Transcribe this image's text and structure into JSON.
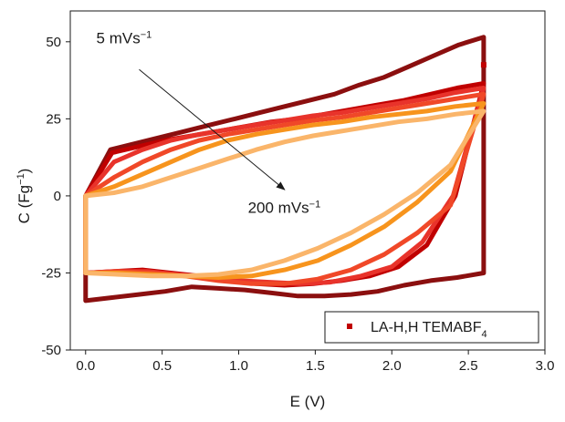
{
  "chart_data": {
    "type": "line",
    "title": "",
    "xlabel": "E (V)",
    "ylabel": {
      "base": "C (Fg",
      "sup": "−1",
      "close": ")"
    },
    "xlim": [
      -0.1,
      3.0
    ],
    "ylim": [
      -50,
      60
    ],
    "x_ticks": [
      0.0,
      0.5,
      1.0,
      1.5,
      2.0,
      2.5,
      3.0
    ],
    "x_tick_labels": [
      "0.0",
      "0.5",
      "1.0",
      "1.5",
      "2.0",
      "2.5",
      "3.0"
    ],
    "y_ticks": [
      -50,
      -25,
      0,
      25,
      50
    ],
    "y_tick_labels": [
      "-50",
      "-25",
      "0",
      "25",
      "50"
    ],
    "grid": false,
    "legend": {
      "placement": "bottom-right",
      "marker_color": "#c00000",
      "text": {
        "base": "LA-H,H TEMABF",
        "sub": "4"
      }
    },
    "annotations": [
      {
        "text": "5 mVs",
        "sup": "−1",
        "x": 0.07,
        "y": 49.5
      },
      {
        "text": "200 mVs",
        "sup": "−1",
        "x": 1.06,
        "y": -5.5
      }
    ],
    "arrow": {
      "from": [
        0.35,
        41
      ],
      "to": [
        1.3,
        2
      ]
    },
    "stray_marker": {
      "x": 2.6,
      "y": 42.5,
      "color": "#c00000"
    },
    "series": [
      {
        "color": "#8b0f0f",
        "upper_y": [
          0,
          15,
          17,
          19,
          21,
          23,
          25,
          27,
          29,
          31,
          33,
          36,
          38.5,
          42,
          45.5,
          49,
          51.5
        ],
        "lower_y": [
          -34,
          -33,
          -32,
          -31,
          -29.5,
          -30,
          -30.5,
          -31.5,
          -32.5,
          -32.5,
          -32,
          -31,
          -29,
          -27.5,
          -26.5,
          -25
        ]
      },
      {
        "color": "#c00000",
        "upper_y": [
          0,
          14,
          16,
          18,
          19.5,
          21,
          22.5,
          24,
          25,
          26.5,
          28,
          29.5,
          31,
          33,
          35,
          36.5
        ],
        "lower_y": [
          -25,
          -24.5,
          -24,
          -25,
          -26,
          -27.5,
          -28.5,
          -29,
          -28.5,
          -27.5,
          -26,
          -23,
          -16,
          0,
          36.5
        ]
      },
      {
        "color": "#e8332b",
        "upper_y": [
          0,
          11,
          15,
          18,
          20,
          21.5,
          23,
          24.5,
          26,
          27,
          28.5,
          30,
          31.5,
          33.5,
          35
        ],
        "lower_y": [
          -25,
          -24.5,
          -24.5,
          -25.5,
          -26.5,
          -27.5,
          -28,
          -28.5,
          -28,
          -26,
          -23,
          -15,
          0,
          35
        ]
      },
      {
        "color": "#f04828",
        "upper_y": [
          0,
          6,
          11,
          15,
          18,
          20,
          21.5,
          23,
          24.5,
          25.5,
          27,
          28.5,
          30,
          31.5,
          33
        ],
        "lower_y": [
          -25,
          -24.5,
          -25,
          -26,
          -27.5,
          -28.5,
          -28.5,
          -27,
          -24,
          -19,
          -12,
          -3,
          33
        ]
      },
      {
        "color": "#f7941d",
        "upper_y": [
          0,
          3,
          7,
          11,
          15,
          18,
          20,
          21.5,
          23,
          24,
          25.5,
          26.5,
          27.5,
          29,
          30
        ],
        "lower_y": [
          -25,
          -25,
          -25.5,
          -26,
          -26.5,
          -26,
          -24,
          -21,
          -16,
          -10,
          -2,
          8,
          30
        ]
      },
      {
        "color": "#fab56a",
        "upper_y": [
          0,
          1,
          3,
          6,
          9,
          12,
          15,
          17.5,
          19.5,
          21,
          22.5,
          24,
          25,
          26.5,
          27.5
        ],
        "lower_y": [
          -25,
          -25.5,
          -26,
          -26,
          -25.5,
          -24,
          -21,
          -17,
          -12,
          -6,
          1,
          10,
          27.5
        ]
      }
    ]
  }
}
